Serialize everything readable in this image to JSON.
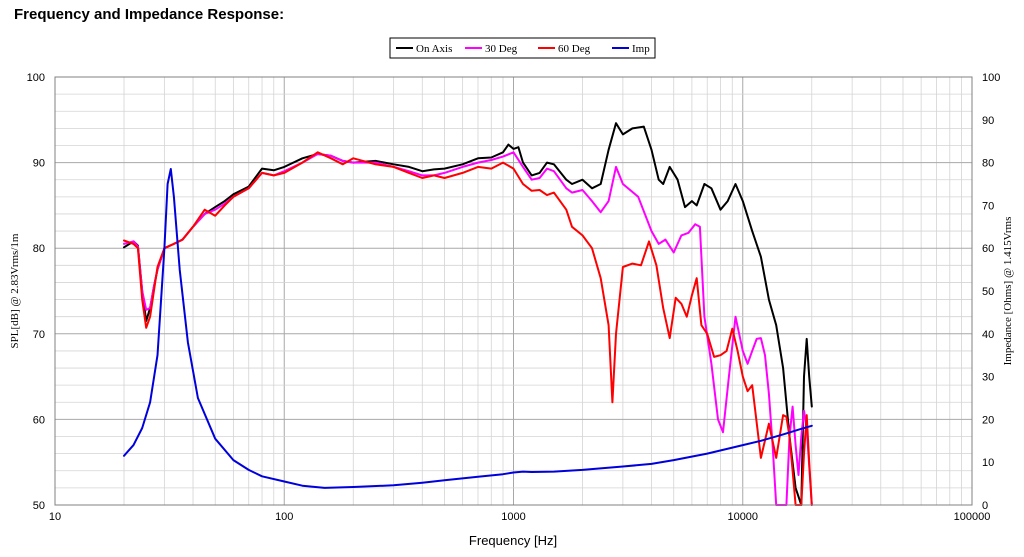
{
  "page": {
    "title": "Frequency and Impedance Response:"
  },
  "chart_data": {
    "type": "line",
    "title": "Frequency and Impedance Response:",
    "xlabel": "Frequency [Hz]",
    "ylabel": "SPL[dB] @ 2.83Vrms/1m",
    "y2label": "Impedance [Ohms] @ 1.415Vrms",
    "xscale": "log",
    "xlim": [
      10,
      100000
    ],
    "ylim": [
      50,
      100
    ],
    "y2lim": [
      0,
      100
    ],
    "grid": true,
    "legend_position": "top-center",
    "x_ticks": [
      "10",
      "100",
      "1000",
      "10000",
      "100000"
    ],
    "y_ticks": [
      "50",
      "60",
      "70",
      "80",
      "90",
      "100"
    ],
    "y2_ticks": [
      "0",
      "10",
      "20",
      "30",
      "40",
      "50",
      "60",
      "70",
      "80",
      "90",
      "100"
    ],
    "series": [
      {
        "name": "On Axis",
        "color": "#000000",
        "axis": "left",
        "points": [
          [
            20,
            80.1
          ],
          [
            22,
            80.8
          ],
          [
            23,
            80.3
          ],
          [
            24,
            75
          ],
          [
            25,
            71.5
          ],
          [
            26,
            73
          ],
          [
            27,
            75.5
          ],
          [
            28,
            77.5
          ],
          [
            30,
            80
          ],
          [
            33,
            80.5
          ],
          [
            36,
            81
          ],
          [
            40,
            82.5
          ],
          [
            45,
            84
          ],
          [
            50,
            84.8
          ],
          [
            55,
            85.5
          ],
          [
            60,
            86.3
          ],
          [
            70,
            87.2
          ],
          [
            80,
            89.3
          ],
          [
            90,
            89.1
          ],
          [
            100,
            89.5
          ],
          [
            120,
            90.5
          ],
          [
            140,
            91
          ],
          [
            160,
            90.8
          ],
          [
            180,
            90.2
          ],
          [
            200,
            90
          ],
          [
            250,
            90.2
          ],
          [
            300,
            89.8
          ],
          [
            350,
            89.5
          ],
          [
            400,
            89
          ],
          [
            450,
            89.2
          ],
          [
            500,
            89.3
          ],
          [
            600,
            89.8
          ],
          [
            700,
            90.5
          ],
          [
            800,
            90.6
          ],
          [
            900,
            91.2
          ],
          [
            950,
            92.1
          ],
          [
            1000,
            91.6
          ],
          [
            1050,
            91.8
          ],
          [
            1100,
            90
          ],
          [
            1200,
            88.5
          ],
          [
            1300,
            88.8
          ],
          [
            1400,
            90
          ],
          [
            1500,
            89.8
          ],
          [
            1700,
            88
          ],
          [
            1800,
            87.5
          ],
          [
            2000,
            88
          ],
          [
            2200,
            87
          ],
          [
            2400,
            87.5
          ],
          [
            2600,
            91.5
          ],
          [
            2800,
            94.6
          ],
          [
            3000,
            93.3
          ],
          [
            3300,
            94
          ],
          [
            3700,
            94.2
          ],
          [
            4000,
            91.5
          ],
          [
            4300,
            88
          ],
          [
            4500,
            87.5
          ],
          [
            4800,
            89.5
          ],
          [
            5200,
            88
          ],
          [
            5600,
            84.8
          ],
          [
            6000,
            85.5
          ],
          [
            6300,
            85
          ],
          [
            6800,
            87.5
          ],
          [
            7300,
            87
          ],
          [
            8000,
            84.5
          ],
          [
            8600,
            85.5
          ],
          [
            9300,
            87.5
          ],
          [
            10000,
            85.5
          ],
          [
            11000,
            82
          ],
          [
            12000,
            79
          ],
          [
            13000,
            74
          ],
          [
            14000,
            71
          ],
          [
            15000,
            66
          ],
          [
            16000,
            58
          ],
          [
            17000,
            52
          ],
          [
            18000,
            50
          ],
          [
            18500,
            65
          ],
          [
            19000,
            69.4
          ],
          [
            19500,
            65
          ],
          [
            20000,
            61.5
          ]
        ]
      },
      {
        "name": "30 Deg",
        "color": "#ff00ff",
        "axis": "left",
        "points": [
          [
            20,
            80.5
          ],
          [
            22,
            80.8
          ],
          [
            23,
            80.2
          ],
          [
            24,
            75
          ],
          [
            25,
            72.8
          ],
          [
            26,
            73
          ],
          [
            27,
            75.5
          ],
          [
            28,
            77.5
          ],
          [
            30,
            80
          ],
          [
            33,
            80.5
          ],
          [
            36,
            81
          ],
          [
            40,
            82.5
          ],
          [
            45,
            84
          ],
          [
            50,
            84.5
          ],
          [
            55,
            85.2
          ],
          [
            60,
            86
          ],
          [
            70,
            87
          ],
          [
            80,
            88.8
          ],
          [
            90,
            88.5
          ],
          [
            100,
            89
          ],
          [
            120,
            90
          ],
          [
            140,
            91
          ],
          [
            160,
            90.8
          ],
          [
            180,
            90.2
          ],
          [
            200,
            90
          ],
          [
            250,
            90
          ],
          [
            300,
            89.5
          ],
          [
            350,
            89
          ],
          [
            400,
            88.5
          ],
          [
            450,
            88.5
          ],
          [
            500,
            88.8
          ],
          [
            600,
            89.5
          ],
          [
            700,
            90
          ],
          [
            800,
            90.3
          ],
          [
            900,
            90.7
          ],
          [
            1000,
            91.2
          ],
          [
            1100,
            89.5
          ],
          [
            1200,
            88
          ],
          [
            1300,
            88.2
          ],
          [
            1400,
            89.3
          ],
          [
            1500,
            89
          ],
          [
            1700,
            87
          ],
          [
            1800,
            86.5
          ],
          [
            2000,
            86.8
          ],
          [
            2200,
            85.5
          ],
          [
            2400,
            84.2
          ],
          [
            2600,
            85.5
          ],
          [
            2800,
            89.5
          ],
          [
            3000,
            87.5
          ],
          [
            3500,
            86
          ],
          [
            4000,
            82
          ],
          [
            4300,
            80.5
          ],
          [
            4600,
            81
          ],
          [
            5000,
            79.5
          ],
          [
            5400,
            81.5
          ],
          [
            5800,
            81.8
          ],
          [
            6200,
            82.8
          ],
          [
            6500,
            82.5
          ],
          [
            6800,
            72
          ],
          [
            7300,
            66.5
          ],
          [
            7800,
            60
          ],
          [
            8200,
            58.5
          ],
          [
            8700,
            65
          ],
          [
            9300,
            72
          ],
          [
            10000,
            68
          ],
          [
            10500,
            66.5
          ],
          [
            11000,
            68
          ],
          [
            11500,
            69.4
          ],
          [
            12000,
            69.5
          ],
          [
            12500,
            67.5
          ],
          [
            13000,
            63
          ],
          [
            13500,
            57
          ],
          [
            14000,
            50
          ],
          [
            15500,
            50
          ],
          [
            16000,
            58
          ],
          [
            16500,
            61.5
          ],
          [
            17000,
            57
          ],
          [
            17500,
            53.5
          ],
          [
            18000,
            58
          ],
          [
            18500,
            61
          ],
          [
            19000,
            59
          ],
          [
            20000,
            50
          ]
        ]
      },
      {
        "name": "60 Deg",
        "color": "#ff0000",
        "axis": "left",
        "points": [
          [
            20,
            80.9
          ],
          [
            22,
            80.5
          ],
          [
            23,
            80
          ],
          [
            24,
            74
          ],
          [
            25,
            70.7
          ],
          [
            26,
            72
          ],
          [
            27,
            75
          ],
          [
            28,
            77.8
          ],
          [
            30,
            80
          ],
          [
            33,
            80.5
          ],
          [
            36,
            81
          ],
          [
            40,
            82.5
          ],
          [
            45,
            84.5
          ],
          [
            50,
            83.8
          ],
          [
            55,
            85
          ],
          [
            60,
            86
          ],
          [
            70,
            87
          ],
          [
            80,
            88.8
          ],
          [
            90,
            88.5
          ],
          [
            100,
            88.8
          ],
          [
            120,
            90
          ],
          [
            140,
            91.2
          ],
          [
            160,
            90.5
          ],
          [
            180,
            89.8
          ],
          [
            200,
            90.5
          ],
          [
            250,
            89.8
          ],
          [
            300,
            89.5
          ],
          [
            350,
            88.8
          ],
          [
            400,
            88.2
          ],
          [
            450,
            88.5
          ],
          [
            500,
            88.2
          ],
          [
            600,
            88.8
          ],
          [
            700,
            89.5
          ],
          [
            800,
            89.3
          ],
          [
            900,
            90
          ],
          [
            1000,
            89.3
          ],
          [
            1100,
            87.5
          ],
          [
            1200,
            86.7
          ],
          [
            1300,
            86.8
          ],
          [
            1400,
            86.2
          ],
          [
            1500,
            86.5
          ],
          [
            1700,
            84.5
          ],
          [
            1800,
            82.5
          ],
          [
            2000,
            81.5
          ],
          [
            2200,
            80
          ],
          [
            2400,
            76.5
          ],
          [
            2600,
            71
          ],
          [
            2700,
            62
          ],
          [
            2800,
            70
          ],
          [
            3000,
            77.8
          ],
          [
            3300,
            78.2
          ],
          [
            3600,
            78
          ],
          [
            3900,
            80.8
          ],
          [
            4200,
            78
          ],
          [
            4500,
            73
          ],
          [
            4800,
            69.5
          ],
          [
            5100,
            74.2
          ],
          [
            5400,
            73.5
          ],
          [
            5700,
            72
          ],
          [
            6000,
            74.5
          ],
          [
            6300,
            76.5
          ],
          [
            6600,
            71
          ],
          [
            7000,
            70
          ],
          [
            7500,
            67.3
          ],
          [
            8000,
            67.5
          ],
          [
            8500,
            68
          ],
          [
            9000,
            70.6
          ],
          [
            9500,
            68
          ],
          [
            10000,
            65
          ],
          [
            10500,
            63.3
          ],
          [
            11000,
            64
          ],
          [
            12000,
            55.5
          ],
          [
            13000,
            59.5
          ],
          [
            14000,
            55.5
          ],
          [
            15000,
            60.5
          ],
          [
            15500,
            60.3
          ],
          [
            16000,
            58
          ],
          [
            16500,
            54
          ],
          [
            17000,
            50
          ],
          [
            18000,
            50
          ],
          [
            18500,
            56
          ],
          [
            19000,
            60.5
          ],
          [
            19500,
            55
          ],
          [
            20000,
            50
          ]
        ]
      },
      {
        "name": "Imp",
        "color": "#0000dd",
        "axis": "right",
        "points": [
          [
            20,
            11.5
          ],
          [
            22,
            14
          ],
          [
            24,
            18
          ],
          [
            26,
            24
          ],
          [
            28,
            35
          ],
          [
            30,
            60
          ],
          [
            31,
            75
          ],
          [
            32,
            78.5
          ],
          [
            33,
            72
          ],
          [
            35,
            55
          ],
          [
            38,
            38
          ],
          [
            42,
            25
          ],
          [
            50,
            15.5
          ],
          [
            60,
            10.5
          ],
          [
            70,
            8.2
          ],
          [
            80,
            6.7
          ],
          [
            100,
            5.5
          ],
          [
            120,
            4.5
          ],
          [
            150,
            4
          ],
          [
            200,
            4.2
          ],
          [
            300,
            4.6
          ],
          [
            400,
            5.2
          ],
          [
            500,
            5.8
          ],
          [
            700,
            6.6
          ],
          [
            900,
            7.2
          ],
          [
            1000,
            7.6
          ],
          [
            1100,
            7.8
          ],
          [
            1200,
            7.7
          ],
          [
            1500,
            7.8
          ],
          [
            2000,
            8.2
          ],
          [
            3000,
            9
          ],
          [
            4000,
            9.6
          ],
          [
            5000,
            10.5
          ],
          [
            7000,
            12
          ],
          [
            10000,
            14
          ],
          [
            12000,
            15
          ],
          [
            15000,
            16.5
          ],
          [
            18000,
            17.8
          ],
          [
            20000,
            18.5
          ]
        ]
      }
    ]
  }
}
